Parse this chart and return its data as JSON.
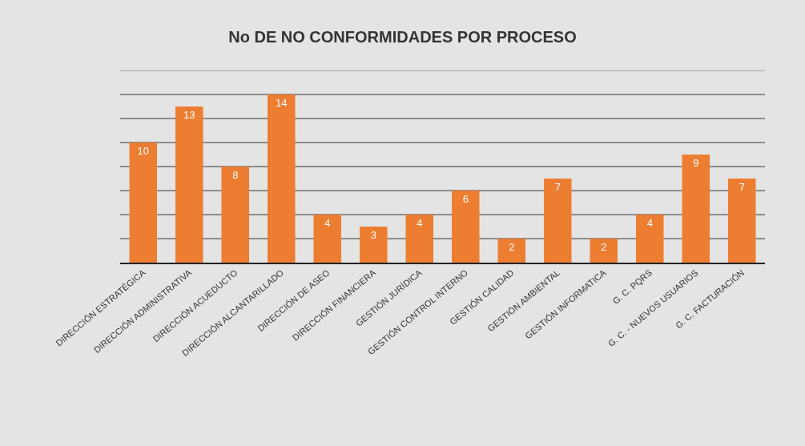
{
  "chart_data": {
    "type": "bar",
    "title": "No DE NO CONFORMIDADES POR PROCESO",
    "categories": [
      "DIRECCIÓN ESTRATÉGICA",
      "DIRECCIÓN ADMINISTRATIVA",
      "DIRECCIÓN ACUEDUCTO",
      "DIRECCIÓN ALCANTARILLADO",
      "DIRECCIÓN DE ASEO",
      "DIRECCIÓN FINANCIERA",
      "GESTIÓN JURÍDICA",
      "GESTIÓN CONTROL INTERNO",
      "GESTIÓN CALIDAD",
      "GESTIÓN AMBIENTAL",
      "GESTIÓN INFORMATICA",
      "G. C. PQRS",
      "G. C. - NUEVOS USUARIOS",
      "G. C. FACTURACIÓN"
    ],
    "values": [
      10,
      13,
      8,
      14,
      4,
      3,
      4,
      6,
      2,
      7,
      2,
      4,
      9,
      7
    ],
    "color": "#ed7d31",
    "ylim": [
      0,
      16
    ],
    "yticks": [
      {
        "value": 0,
        "label": null
      },
      {
        "value": 2,
        "label": null
      },
      {
        "value": 4,
        "label": null
      },
      {
        "value": 6,
        "label": null
      },
      {
        "value": 8,
        "label": null
      },
      {
        "value": 10,
        "label": null
      },
      {
        "value": 12,
        "label": null
      },
      {
        "value": 14,
        "label": null
      },
      {
        "value": 16,
        "label": null
      }
    ],
    "grid": "y",
    "tick_labels": "x",
    "data_labels": true
  }
}
